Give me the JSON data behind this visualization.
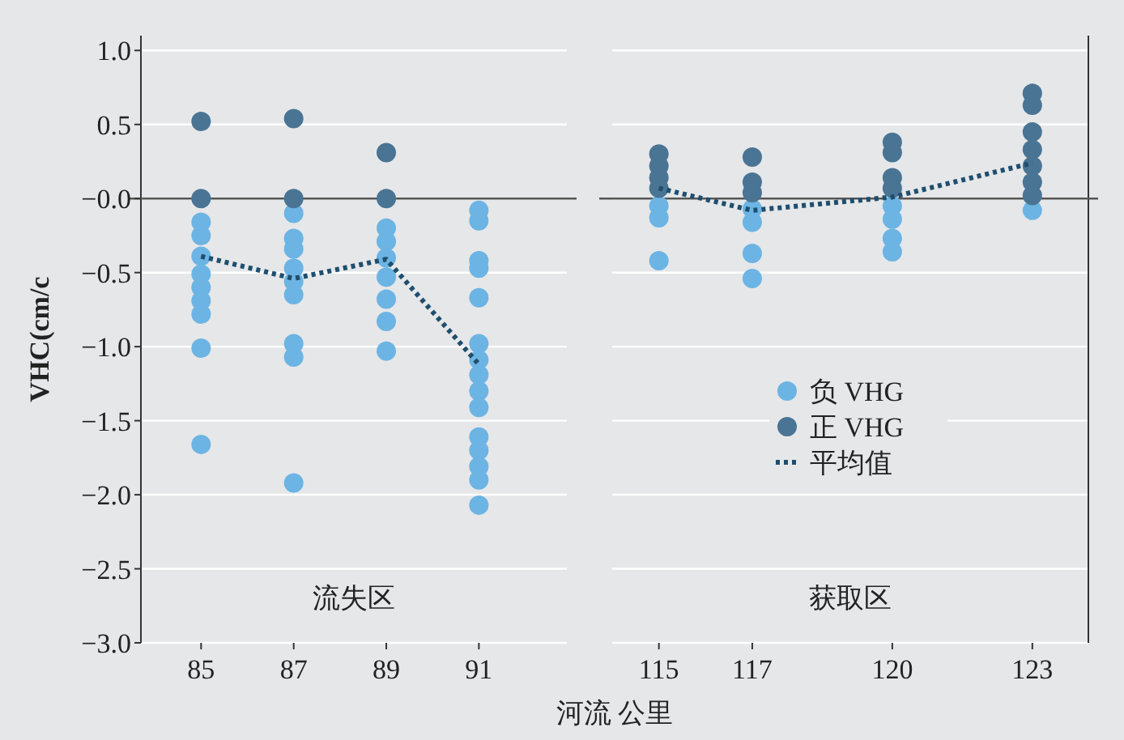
{
  "chart_data": [
    {
      "type": "scatter",
      "ylabel": "VHC(cm/c",
      "xlabel": "河流 公里",
      "xlim": [
        83.7,
        92.9
      ],
      "xticks": [
        85,
        87,
        89,
        91
      ],
      "ylim": [
        -3.0,
        1.1
      ],
      "yticks": [
        {
          "value": 1,
          "label": "1.0"
        },
        {
          "value": 0.5,
          "label": "0.5"
        },
        {
          "value": 0,
          "label": "−0.0"
        },
        {
          "value": -0.5,
          "label": "−0.5"
        },
        {
          "value": -1,
          "label": "−1.0"
        },
        {
          "value": -1.5,
          "label": "−1.5"
        },
        {
          "value": -2,
          "label": "−2.0"
        },
        {
          "value": -2.5,
          "label": "−2.5"
        },
        {
          "value": -3,
          "label": "−3.0"
        }
      ],
      "grid": "y",
      "legend": false,
      "ref_lines": [
        {
          "axis": "y",
          "value": 0,
          "color": "#555555"
        }
      ],
      "annotations": [
        "流失区"
      ],
      "series": [
        {
          "color": "#6cb4e4",
          "x": [
            85,
            85,
            85,
            85,
            85,
            85,
            85,
            85,
            85,
            87,
            87,
            87,
            87,
            87,
            87,
            87,
            87,
            87,
            89,
            89,
            89,
            89,
            89,
            89,
            89,
            91,
            91,
            91,
            91,
            91,
            91,
            91,
            91,
            91,
            91,
            91,
            91,
            91,
            91,
            91
          ],
          "values": [
            -0.16,
            -0.25,
            -0.39,
            -0.51,
            -0.6,
            -0.69,
            -0.78,
            -1.01,
            -1.66,
            -0.1,
            -0.27,
            -0.34,
            -0.47,
            -0.56,
            -0.65,
            -0.98,
            -1.07,
            -1.92,
            -0.2,
            -0.29,
            -0.4,
            -0.53,
            -0.68,
            -0.83,
            -1.03,
            -0.08,
            -0.15,
            -0.42,
            -0.47,
            -0.67,
            -0.98,
            -1.09,
            -1.19,
            -1.3,
            -1.41,
            -1.61,
            -1.7,
            -1.81,
            -1.9,
            -2.07
          ]
        },
        {
          "color": "#4a7494",
          "x": [
            85,
            85,
            87,
            87,
            89,
            89
          ],
          "values": [
            0.52,
            0,
            0.54,
            0,
            0.31,
            0
          ]
        },
        {
          "type": "line",
          "color": "#1f4e6e",
          "line_style": "dotted",
          "marker": "none",
          "x": [
            85,
            87,
            89,
            91
          ],
          "values": [
            -0.39,
            -0.54,
            -0.41,
            -1.12
          ]
        }
      ]
    },
    {
      "type": "scatter",
      "xlim": [
        114,
        124.2
      ],
      "xticks": [
        115,
        117,
        120,
        123
      ],
      "ylim": [
        -3.0,
        1.1
      ],
      "yticks": [
        1,
        0.5,
        0,
        -0.5,
        -1,
        -1.5,
        -2,
        -2.5,
        -3
      ],
      "tick_labels": "x",
      "grid": "y",
      "legend": "bottom",
      "ref_lines": [
        {
          "axis": "y",
          "value": 0,
          "color": "#555555"
        }
      ],
      "annotations": [
        "获取区"
      ],
      "series": [
        {
          "name": "负 VHG",
          "color": "#6cb4e4",
          "x": [
            115,
            115,
            115,
            117,
            117,
            117,
            117,
            120,
            120,
            120,
            120,
            123
          ],
          "values": [
            -0.05,
            -0.13,
            -0.42,
            -0.07,
            -0.16,
            -0.37,
            -0.54,
            -0.05,
            -0.14,
            -0.27,
            -0.36,
            -0.08
          ]
        },
        {
          "name": "正 VHG",
          "color": "#4a7494",
          "x": [
            115,
            115,
            115,
            115,
            117,
            117,
            117,
            120,
            120,
            120,
            120,
            123,
            123,
            123,
            123,
            123,
            123,
            123
          ],
          "values": [
            0.3,
            0.22,
            0.14,
            0.07,
            0.28,
            0.11,
            0.04,
            0.38,
            0.31,
            0.14,
            0.07,
            0.71,
            0.63,
            0.45,
            0.33,
            0.22,
            0.11,
            0.02
          ]
        },
        {
          "type": "line",
          "name": "平均值",
          "color": "#1f4e6e",
          "line_style": "dotted",
          "marker": "none",
          "x": [
            115,
            117,
            120,
            123
          ],
          "values": [
            0.07,
            -0.08,
            0.01,
            0.24
          ]
        }
      ]
    }
  ]
}
